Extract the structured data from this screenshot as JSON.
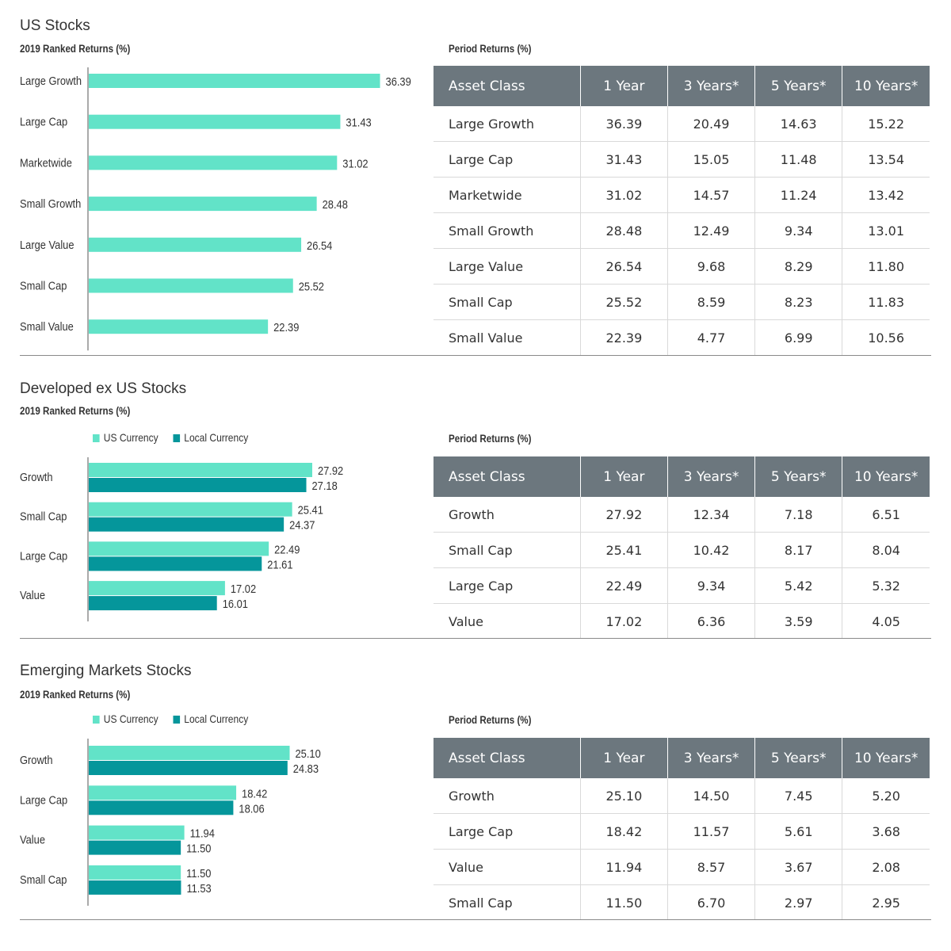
{
  "colors": {
    "us_currency": "#62e3c8",
    "local_currency": "#05969b",
    "table_header": "#6c777e"
  },
  "table_headers": [
    "Asset Class",
    "1 Year",
    "3 Years*",
    "5 Years*",
    "10 Years*"
  ],
  "period_title": "Period Returns (%)",
  "ranked_subtitle": "2019 Ranked Returns (%)",
  "legend": {
    "us": "US Currency",
    "local": "Local Currency"
  },
  "sections": [
    {
      "title": "US Stocks",
      "table_rows": [
        [
          "Large Growth",
          "36.39",
          "20.49",
          "14.63",
          "15.22"
        ],
        [
          "Large Cap",
          "31.43",
          "15.05",
          "11.48",
          "13.54"
        ],
        [
          "Marketwide",
          "31.02",
          "14.57",
          "11.24",
          "13.42"
        ],
        [
          "Small Growth",
          "28.48",
          "12.49",
          "9.34",
          "13.01"
        ],
        [
          "Large Value",
          "26.54",
          "9.68",
          "8.29",
          "11.80"
        ],
        [
          "Small Cap",
          "25.52",
          "8.59",
          "8.23",
          "11.83"
        ],
        [
          "Small Value",
          "22.39",
          "4.77",
          "6.99",
          "10.56"
        ]
      ]
    },
    {
      "title": "Developed ex US Stocks",
      "table_rows": [
        [
          "Growth",
          "27.92",
          "12.34",
          "7.18",
          "6.51"
        ],
        [
          "Small Cap",
          "25.41",
          "10.42",
          "8.17",
          "8.04"
        ],
        [
          "Large Cap",
          "22.49",
          "9.34",
          "5.42",
          "5.32"
        ],
        [
          "Value",
          "17.02",
          "6.36",
          "3.59",
          "4.05"
        ]
      ]
    },
    {
      "title": "Emerging Markets Stocks",
      "table_rows": [
        [
          "Growth",
          "25.10",
          "14.50",
          "7.45",
          "5.20"
        ],
        [
          "Large Cap",
          "18.42",
          "11.57",
          "5.61",
          "3.68"
        ],
        [
          "Value",
          "11.94",
          "8.57",
          "3.67",
          "2.08"
        ],
        [
          "Small Cap",
          "11.50",
          "6.70",
          "2.97",
          "2.95"
        ]
      ]
    }
  ],
  "chart_data": [
    {
      "type": "bar",
      "orientation": "horizontal",
      "title": "US Stocks",
      "subtitle": "2019 Ranked Returns (%)",
      "categories": [
        "Large Growth",
        "Large Cap",
        "Marketwide",
        "Small Growth",
        "Large Value",
        "Small Cap",
        "Small Value"
      ],
      "series": [
        {
          "values": [
            36.39,
            31.43,
            31.02,
            28.48,
            26.54,
            25.52,
            22.39
          ]
        }
      ],
      "value_labels": [
        "36.39",
        "31.43",
        "31.02",
        "28.48",
        "26.54",
        "25.52",
        "22.39"
      ],
      "xlim": [
        0,
        40
      ]
    },
    {
      "type": "bar",
      "orientation": "horizontal",
      "title": "Developed ex US Stocks",
      "subtitle": "2019 Ranked Returns (%)",
      "categories": [
        "Growth",
        "Small Cap",
        "Large Cap",
        "Value"
      ],
      "series": [
        {
          "name": "US Currency",
          "values": [
            27.92,
            25.41,
            22.49,
            17.02
          ],
          "labels": [
            "27.92",
            "25.41",
            "22.49",
            "17.02"
          ]
        },
        {
          "name": "Local Currency",
          "values": [
            27.18,
            24.37,
            21.61,
            16.01
          ],
          "labels": [
            "27.18",
            "24.37",
            "21.61",
            "16.01"
          ]
        }
      ],
      "legend": "top",
      "xlim": [
        0,
        40
      ]
    },
    {
      "type": "bar",
      "orientation": "horizontal",
      "title": "Emerging Markets Stocks",
      "subtitle": "2019 Ranked Returns (%)",
      "categories": [
        "Growth",
        "Large Cap",
        "Value",
        "Small Cap"
      ],
      "series": [
        {
          "name": "US Currency",
          "values": [
            25.1,
            18.42,
            11.94,
            11.5
          ],
          "labels": [
            "25.10",
            "18.42",
            "11.94",
            "11.50"
          ]
        },
        {
          "name": "Local Currency",
          "values": [
            24.83,
            18.06,
            11.5,
            11.53
          ],
          "labels": [
            "24.83",
            "18.06",
            "11.50",
            "11.53"
          ]
        }
      ],
      "legend": "top",
      "xlim": [
        0,
        30
      ]
    }
  ]
}
